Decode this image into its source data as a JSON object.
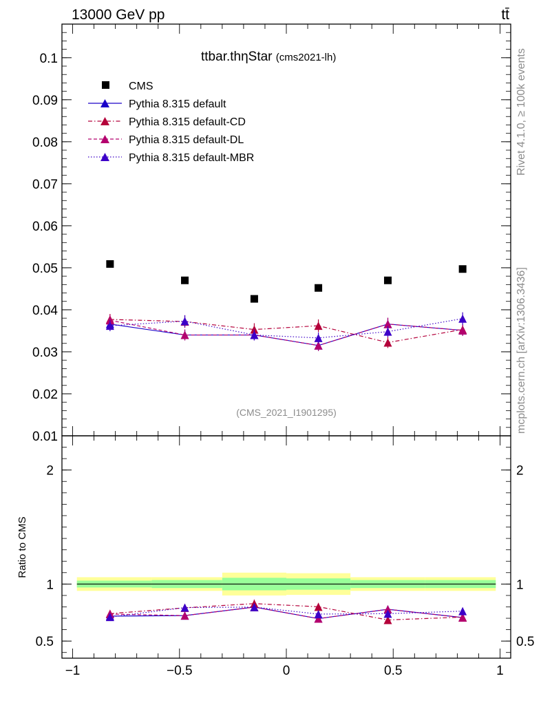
{
  "header": {
    "left": "13000 GeV pp",
    "right": "tt̄"
  },
  "side": {
    "top": "Rivet 4.1.0, ≥ 100k events",
    "bottom": "mcplots.cern.ch [arXiv:1306.3436]"
  },
  "chart_data": [
    {
      "type": "scatter",
      "title_main": "ttbar.thηStar",
      "title_sub": "(cms2021-lh)",
      "watermark": "(CMS_2021_I1901295)",
      "xlim": [
        -1.05,
        1.05
      ],
      "ylim": [
        0.01,
        0.108
      ],
      "yticks": [
        {
          "v": 0.01,
          "label": "0.01"
        },
        {
          "v": 0.02,
          "label": "0.02"
        },
        {
          "v": 0.03,
          "label": "0.03"
        },
        {
          "v": 0.04,
          "label": "0.04"
        },
        {
          "v": 0.05,
          "label": "0.05"
        },
        {
          "v": 0.06,
          "label": "0.06"
        },
        {
          "v": 0.07,
          "label": "0.07"
        },
        {
          "v": 0.08,
          "label": "0.08"
        },
        {
          "v": 0.09,
          "label": "0.09"
        },
        {
          "v": 0.1,
          "label": "0.1"
        }
      ],
      "x": [
        -0.825,
        -0.475,
        -0.15,
        0.15,
        0.475,
        0.825
      ],
      "xedges": [
        -1.0,
        -0.65,
        -0.3,
        0.0,
        0.3,
        0.65,
        1.0
      ],
      "data": {
        "name": "CMS",
        "color": "#000000",
        "values": [
          0.0509,
          0.047,
          0.0426,
          0.0452,
          0.047,
          0.0497
        ]
      },
      "series": [
        {
          "name": "Pythia 8.315 default",
          "color": "#1a00c8",
          "dash": "solid",
          "values": [
            0.0366,
            0.034,
            0.034,
            0.0315,
            0.0366,
            0.0351
          ],
          "err": [
            0.0013,
            0.0013,
            0.0013,
            0.0013,
            0.0015,
            0.0013
          ]
        },
        {
          "name": "Pythia 8.315 default-CD",
          "color": "#b4003a",
          "dash": "dashdot",
          "values": [
            0.0377,
            0.0372,
            0.0353,
            0.0362,
            0.0322,
            0.0353
          ],
          "err": [
            0.0013,
            0.0015,
            0.0015,
            0.0015,
            0.0013,
            0.0013
          ]
        },
        {
          "name": "Pythia 8.315 default-DL",
          "color": "#b4006e",
          "dash": "dash",
          "values": [
            0.0375,
            0.034,
            0.034,
            0.0315,
            0.0366,
            0.0351
          ],
          "err": [
            0.0013,
            0.0013,
            0.0013,
            0.0013,
            0.0015,
            0.0013
          ]
        },
        {
          "name": "Pythia 8.315 default-MBR",
          "color": "#3c00c8",
          "dash": "dot",
          "values": [
            0.0362,
            0.0373,
            0.034,
            0.0333,
            0.0348,
            0.0379
          ],
          "err": [
            0.0013,
            0.0014,
            0.0013,
            0.0013,
            0.0013,
            0.0015
          ]
        }
      ]
    },
    {
      "type": "ratio",
      "ylabel": "Ratio to CMS",
      "ylim": [
        0.35,
        2.3
      ],
      "yticks": [
        {
          "v": 0.5,
          "label": "0.5"
        },
        {
          "v": 1,
          "label": "1"
        },
        {
          "v": 2,
          "label": "2"
        }
      ],
      "xticks": [
        {
          "v": -1,
          "label": "−1"
        },
        {
          "v": -0.5,
          "label": "−0.5"
        },
        {
          "v": 0,
          "label": "0"
        },
        {
          "v": 0.5,
          "label": "0.5"
        },
        {
          "v": 1,
          "label": "1"
        }
      ],
      "bands": [
        {
          "x0": -0.98,
          "x1": -0.63,
          "stat": 0.03,
          "total": 0.06
        },
        {
          "x0": -0.63,
          "x1": -0.3,
          "stat": 0.035,
          "total": 0.06
        },
        {
          "x0": -0.3,
          "x1": 0.0,
          "stat": 0.055,
          "total": 0.1
        },
        {
          "x0": 0.0,
          "x1": 0.3,
          "stat": 0.05,
          "total": 0.095
        },
        {
          "x0": 0.3,
          "x1": 0.65,
          "stat": 0.035,
          "total": 0.06
        },
        {
          "x0": 0.65,
          "x1": 0.98,
          "stat": 0.035,
          "total": 0.06
        }
      ],
      "band_colors": {
        "total": "#ffff99",
        "stat": "#99ff99"
      }
    }
  ]
}
